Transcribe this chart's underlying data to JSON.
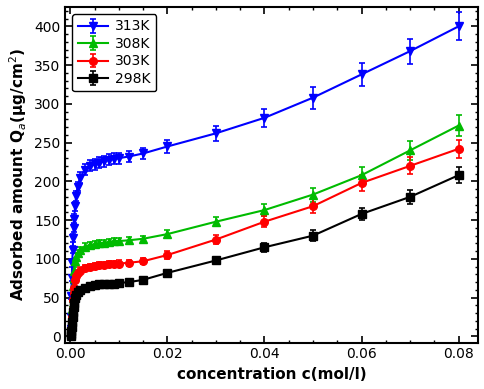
{
  "xlabel": "concentration c(mol/l)",
  "ylabel": "Adsorbed amount Q$_a$(μg/cm$^2$)",
  "xlim": [
    -0.001,
    0.084
  ],
  "ylim": [
    -8,
    425
  ],
  "series": {
    "313K": {
      "color": "#0000FF",
      "marker": "v",
      "x": [
        5e-05,
        0.0001,
        0.0002,
        0.0003,
        0.0004,
        0.0005,
        0.0006,
        0.0007,
        0.0008,
        0.001,
        0.0012,
        0.0015,
        0.002,
        0.003,
        0.004,
        0.005,
        0.006,
        0.007,
        0.008,
        0.009,
        0.01,
        0.012,
        0.015,
        0.02,
        0.03,
        0.04,
        0.05,
        0.06,
        0.07,
        0.08
      ],
      "y": [
        10,
        25,
        52,
        75,
        95,
        112,
        127,
        140,
        152,
        168,
        181,
        193,
        205,
        215,
        220,
        222,
        224,
        226,
        228,
        229,
        230,
        232,
        236,
        245,
        262,
        282,
        308,
        338,
        368,
        400
      ],
      "yerr": [
        3,
        3,
        4,
        4,
        5,
        5,
        5,
        5,
        6,
        6,
        6,
        6,
        7,
        7,
        7,
        7,
        7,
        7,
        7,
        7,
        7,
        7,
        7,
        8,
        10,
        12,
        14,
        15,
        16,
        18
      ]
    },
    "308K": {
      "color": "#00BB00",
      "marker": "^",
      "x": [
        5e-05,
        0.0001,
        0.0002,
        0.0003,
        0.0004,
        0.0005,
        0.0006,
        0.0007,
        0.0008,
        0.001,
        0.0012,
        0.0015,
        0.002,
        0.003,
        0.004,
        0.005,
        0.006,
        0.007,
        0.008,
        0.009,
        0.01,
        0.012,
        0.015,
        0.02,
        0.03,
        0.04,
        0.05,
        0.06,
        0.07,
        0.08
      ],
      "y": [
        2,
        5,
        12,
        22,
        35,
        50,
        65,
        76,
        85,
        97,
        103,
        108,
        112,
        116,
        118,
        119,
        120,
        121,
        122,
        123,
        123,
        124,
        126,
        132,
        148,
        163,
        183,
        208,
        240,
        272
      ],
      "yerr": [
        2,
        2,
        3,
        3,
        3,
        4,
        4,
        4,
        4,
        4,
        4,
        4,
        4,
        4,
        4,
        4,
        4,
        4,
        4,
        4,
        4,
        4,
        4,
        5,
        6,
        8,
        9,
        10,
        12,
        14
      ]
    },
    "303K": {
      "color": "#FF0000",
      "marker": "o",
      "x": [
        5e-05,
        0.0001,
        0.0002,
        0.0003,
        0.0004,
        0.0005,
        0.0006,
        0.0007,
        0.0008,
        0.001,
        0.0012,
        0.0015,
        0.002,
        0.003,
        0.004,
        0.005,
        0.006,
        0.007,
        0.008,
        0.009,
        0.01,
        0.012,
        0.015,
        0.02,
        0.03,
        0.04,
        0.05,
        0.06,
        0.07,
        0.08
      ],
      "y": [
        2,
        4,
        10,
        17,
        25,
        36,
        47,
        56,
        63,
        73,
        78,
        82,
        85,
        88,
        90,
        91,
        92,
        92,
        93,
        93,
        94,
        95,
        97,
        105,
        125,
        148,
        168,
        198,
        220,
        242
      ],
      "yerr": [
        2,
        2,
        2,
        3,
        3,
        3,
        3,
        3,
        3,
        4,
        4,
        4,
        4,
        4,
        4,
        4,
        4,
        4,
        4,
        4,
        4,
        4,
        4,
        5,
        6,
        7,
        9,
        10,
        11,
        12
      ]
    },
    "298K": {
      "color": "#000000",
      "marker": "s",
      "x": [
        5e-05,
        0.0001,
        0.0002,
        0.0003,
        0.0004,
        0.0005,
        0.0006,
        0.0007,
        0.0008,
        0.001,
        0.0012,
        0.0015,
        0.002,
        0.003,
        0.004,
        0.005,
        0.006,
        0.007,
        0.008,
        0.009,
        0.01,
        0.012,
        0.015,
        0.02,
        0.03,
        0.04,
        0.05,
        0.06,
        0.07,
        0.08
      ],
      "y": [
        1,
        3,
        7,
        12,
        18,
        25,
        32,
        38,
        43,
        50,
        54,
        57,
        60,
        63,
        65,
        66,
        67,
        67,
        68,
        68,
        69,
        70,
        73,
        82,
        98,
        115,
        130,
        158,
        180,
        208
      ],
      "yerr": [
        1,
        2,
        2,
        2,
        2,
        2,
        2,
        2,
        2,
        3,
        3,
        3,
        3,
        3,
        3,
        3,
        3,
        3,
        3,
        3,
        3,
        3,
        3,
        4,
        5,
        6,
        7,
        8,
        9,
        10
      ]
    }
  },
  "legend_order": [
    "313K",
    "308K",
    "303K",
    "298K"
  ],
  "xticks": [
    0.0,
    0.02,
    0.04,
    0.06,
    0.08
  ],
  "yticks": [
    0,
    50,
    100,
    150,
    200,
    250,
    300,
    350,
    400
  ],
  "figsize": [
    4.85,
    3.89
  ],
  "dpi": 100
}
